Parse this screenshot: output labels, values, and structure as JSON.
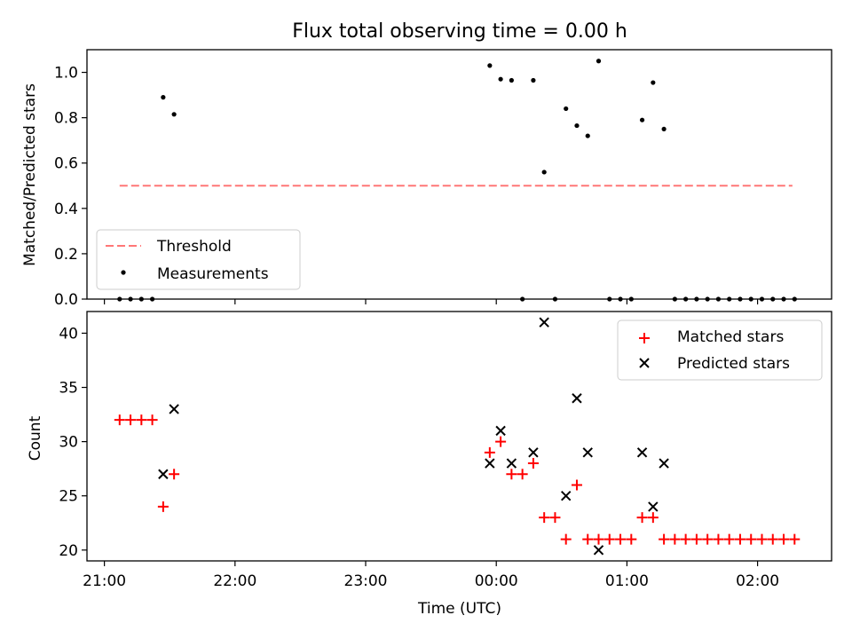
{
  "chart_data": [
    {
      "type": "scatter",
      "title": "Flux total observing time = 0.00 h",
      "ylabel": "Matched/Predicted stars",
      "xlabel": "",
      "xlim": [
        "20:52",
        "02:34"
      ],
      "ylim": [
        0,
        1.1
      ],
      "yticks": [
        "0.0",
        "0.2",
        "0.4",
        "0.6",
        "0.8",
        "1.0"
      ],
      "legend_position": "lower-left",
      "threshold": {
        "name": "Threshold",
        "value": 0.5,
        "x_start": "21:07",
        "x_end": "02:16",
        "color": "#ff7777",
        "style": "dashed"
      },
      "series": [
        {
          "name": "Measurements",
          "color": "#000000",
          "marker": "dot",
          "points": [
            [
              "21:07",
              0.0
            ],
            [
              "21:12",
              0.0
            ],
            [
              "21:17",
              0.0
            ],
            [
              "21:22",
              0.0
            ],
            [
              "21:27",
              0.89
            ],
            [
              "21:32",
              0.815
            ],
            [
              "23:57",
              1.03
            ],
            [
              "00:02",
              0.97
            ],
            [
              "00:07",
              0.965
            ],
            [
              "00:12",
              0.0
            ],
            [
              "00:17",
              0.965
            ],
            [
              "00:22",
              0.56
            ],
            [
              "00:27",
              0.0
            ],
            [
              "00:32",
              0.84
            ],
            [
              "00:37",
              0.765
            ],
            [
              "00:42",
              0.72
            ],
            [
              "00:47",
              1.05
            ],
            [
              "00:52",
              0.0
            ],
            [
              "00:57",
              0.0
            ],
            [
              "01:02",
              0.0
            ],
            [
              "01:07",
              0.79
            ],
            [
              "01:12",
              0.955
            ],
            [
              "01:17",
              0.75
            ],
            [
              "01:22",
              0.0
            ],
            [
              "01:27",
              0.0
            ],
            [
              "01:32",
              0.0
            ],
            [
              "01:37",
              0.0
            ],
            [
              "01:42",
              0.0
            ],
            [
              "01:47",
              0.0
            ],
            [
              "01:52",
              0.0
            ],
            [
              "01:57",
              0.0
            ],
            [
              "02:02",
              0.0
            ],
            [
              "02:07",
              0.0
            ],
            [
              "02:12",
              0.0
            ],
            [
              "02:17",
              0.0
            ]
          ]
        }
      ]
    },
    {
      "type": "scatter",
      "title": "",
      "ylabel": "Count",
      "xlabel": "Time (UTC)",
      "xlim": [
        "20:52",
        "02:34"
      ],
      "ylim": [
        19,
        42
      ],
      "yticks": [
        "20",
        "25",
        "30",
        "35",
        "40"
      ],
      "xticks": [
        "21:00",
        "22:00",
        "23:00",
        "00:00",
        "01:00",
        "02:00"
      ],
      "legend_position": "upper-right",
      "series": [
        {
          "name": "Matched stars",
          "color": "#ff0000",
          "marker": "plus",
          "points": [
            [
              "21:07",
              32
            ],
            [
              "21:12",
              32
            ],
            [
              "21:17",
              32
            ],
            [
              "21:22",
              32
            ],
            [
              "21:27",
              24
            ],
            [
              "21:32",
              27
            ],
            [
              "23:57",
              29
            ],
            [
              "00:02",
              30
            ],
            [
              "00:07",
              27
            ],
            [
              "00:12",
              27
            ],
            [
              "00:17",
              28
            ],
            [
              "00:22",
              23
            ],
            [
              "00:27",
              23
            ],
            [
              "00:32",
              21
            ],
            [
              "00:37",
              26
            ],
            [
              "00:42",
              21
            ],
            [
              "00:47",
              21
            ],
            [
              "00:52",
              21
            ],
            [
              "00:57",
              21
            ],
            [
              "01:02",
              21
            ],
            [
              "01:07",
              23
            ],
            [
              "01:12",
              23
            ],
            [
              "01:17",
              21
            ],
            [
              "01:22",
              21
            ],
            [
              "01:27",
              21
            ],
            [
              "01:32",
              21
            ],
            [
              "01:37",
              21
            ],
            [
              "01:42",
              21
            ],
            [
              "01:47",
              21
            ],
            [
              "01:52",
              21
            ],
            [
              "01:57",
              21
            ],
            [
              "02:02",
              21
            ],
            [
              "02:07",
              21
            ],
            [
              "02:12",
              21
            ],
            [
              "02:17",
              21
            ]
          ]
        },
        {
          "name": "Predicted stars",
          "color": "#000000",
          "marker": "x",
          "points": [
            [
              "21:27",
              27
            ],
            [
              "21:32",
              33
            ],
            [
              "23:57",
              28
            ],
            [
              "00:02",
              31
            ],
            [
              "00:07",
              28
            ],
            [
              "00:17",
              29
            ],
            [
              "00:22",
              41
            ],
            [
              "00:32",
              25
            ],
            [
              "00:37",
              34
            ],
            [
              "00:42",
              29
            ],
            [
              "00:47",
              20
            ],
            [
              "01:07",
              29
            ],
            [
              "01:12",
              24
            ],
            [
              "01:17",
              28
            ]
          ]
        }
      ]
    }
  ]
}
